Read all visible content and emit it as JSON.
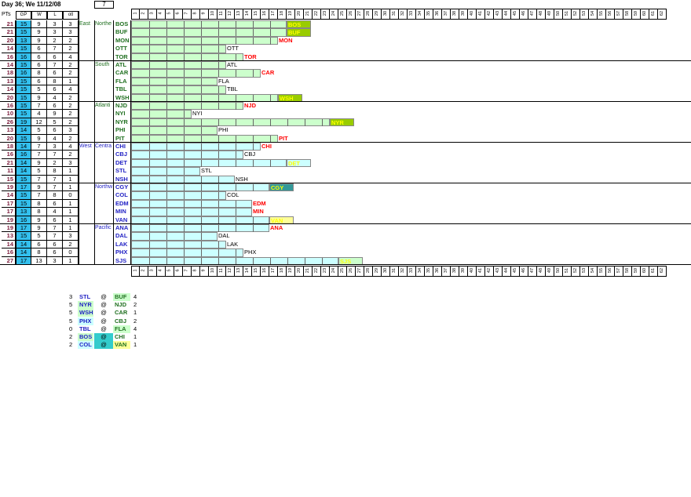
{
  "header": {
    "title": "Day 36; We 11/12/08",
    "box": "7"
  },
  "columns": {
    "pts": "PTs",
    "gp": "GP",
    "w": "W",
    "l": "L",
    "otl": "otl"
  },
  "axis": [
    "1",
    "2",
    "3",
    "4",
    "5",
    "6",
    "7",
    "8",
    "9",
    "10",
    "11",
    "12",
    "13",
    "14",
    "15",
    "16",
    "17",
    "18",
    "19",
    "20",
    "21",
    "22",
    "23",
    "24",
    "25",
    "26",
    "27",
    "28",
    "29",
    "30",
    "31",
    "32",
    "33",
    "34",
    "35",
    "36",
    "37",
    "38",
    "39",
    "40",
    "41",
    "42",
    "43",
    "44",
    "45",
    "46",
    "47",
    "48",
    "49",
    "50",
    "51",
    "52",
    "53",
    "54",
    "55",
    "56",
    "57",
    "58",
    "59",
    "60",
    "61",
    "62"
  ],
  "divisions": [
    {
      "conf": "East",
      "name": "Northe",
      "teams": [
        {
          "pts": "21",
          "gp": "15",
          "w": "9",
          "l": "3",
          "otl": "3",
          "team": "BOS",
          "bar": 21,
          "label": "BOS",
          "color": "#99cc00",
          "labelColor": "#ffff00"
        },
        {
          "pts": "21",
          "gp": "15",
          "w": "9",
          "l": "3",
          "otl": "3",
          "team": "BUF",
          "bar": 21,
          "label": "BUF",
          "color": "#99cc00",
          "labelColor": "#ffff00"
        },
        {
          "pts": "20",
          "gp": "13",
          "w": "9",
          "l": "2",
          "otl": "2",
          "team": "MON",
          "bar": 20,
          "label": "MON",
          "color": "#ffffff",
          "labelColor": "#ff0000"
        },
        {
          "pts": "14",
          "gp": "15",
          "w": "6",
          "l": "7",
          "otl": "2",
          "team": "OTT",
          "bar": 14,
          "label": "OTT",
          "color": "#ffffff",
          "labelColor": "#000000"
        },
        {
          "pts": "16",
          "gp": "16",
          "w": "6",
          "l": "6",
          "otl": "4",
          "team": "TOR",
          "bar": 16,
          "label": "TOR",
          "color": "#ffffff",
          "labelColor": "#ff0000"
        }
      ]
    },
    {
      "conf": "",
      "name": "South",
      "teams": [
        {
          "pts": "14",
          "gp": "15",
          "w": "6",
          "l": "7",
          "otl": "2",
          "team": "ATL",
          "bar": 14,
          "label": "ATL",
          "color": "#ffffff",
          "labelColor": "#000000"
        },
        {
          "pts": "18",
          "gp": "16",
          "w": "8",
          "l": "6",
          "otl": "2",
          "team": "CAR",
          "bar": 18,
          "label": "CAR",
          "color": "#ffffff",
          "labelColor": "#ff0000"
        },
        {
          "pts": "13",
          "gp": "15",
          "w": "6",
          "l": "8",
          "otl": "1",
          "team": "FLA",
          "bar": 13,
          "label": "FLA",
          "color": "#ffffff",
          "labelColor": "#000000"
        },
        {
          "pts": "14",
          "gp": "15",
          "w": "5",
          "l": "6",
          "otl": "4",
          "team": "TBL",
          "bar": 14,
          "label": "TBL",
          "color": "#ffffff",
          "labelColor": "#000000"
        },
        {
          "pts": "20",
          "gp": "15",
          "w": "9",
          "l": "4",
          "otl": "2",
          "team": "WSH",
          "bar": 20,
          "label": "WSH",
          "color": "#99cc00",
          "labelColor": "#ffff00"
        }
      ]
    },
    {
      "conf": "",
      "name": "Atlanti",
      "teams": [
        {
          "pts": "16",
          "gp": "15",
          "w": "7",
          "l": "6",
          "otl": "2",
          "team": "NJD",
          "bar": 16,
          "label": "NJD",
          "color": "#ffffff",
          "labelColor": "#ff0000"
        },
        {
          "pts": "10",
          "gp": "15",
          "w": "4",
          "l": "9",
          "otl": "2",
          "team": "NYI",
          "bar": 10,
          "label": "NYI",
          "color": "#ffffff",
          "labelColor": "#000000"
        },
        {
          "pts": "26",
          "gp": "19",
          "w": "12",
          "l": "5",
          "otl": "2",
          "team": "NYR",
          "bar": 26,
          "label": "NYR",
          "color": "#99cc00",
          "labelColor": "#ffff00"
        },
        {
          "pts": "13",
          "gp": "14",
          "w": "5",
          "l": "6",
          "otl": "3",
          "team": "PHI",
          "bar": 13,
          "label": "PHI",
          "color": "#ffffff",
          "labelColor": "#000000"
        },
        {
          "pts": "20",
          "gp": "15",
          "w": "9",
          "l": "4",
          "otl": "2",
          "team": "PIT",
          "bar": 20,
          "label": "PIT",
          "color": "#ffffff",
          "labelColor": "#ff0000"
        }
      ]
    },
    {
      "conf": "West",
      "name": "Centra",
      "teams": [
        {
          "pts": "18",
          "gp": "14",
          "w": "7",
          "l": "3",
          "otl": "4",
          "team": "CHI",
          "bar": 18,
          "label": "CHI",
          "color": "#ffffff",
          "labelColor": "#ff0000"
        },
        {
          "pts": "16",
          "gp": "16",
          "w": "7",
          "l": "7",
          "otl": "2",
          "team": "CBJ",
          "bar": 16,
          "label": "CBJ",
          "color": "#ffffff",
          "labelColor": "#000000"
        },
        {
          "pts": "21",
          "gp": "14",
          "w": "9",
          "l": "2",
          "otl": "3",
          "team": "DET",
          "bar": 21,
          "label": "DET",
          "color": "#ccffff",
          "labelColor": "#ffff00"
        },
        {
          "pts": "11",
          "gp": "14",
          "w": "5",
          "l": "8",
          "otl": "1",
          "team": "STL",
          "bar": 11,
          "label": "STL",
          "color": "#ffffff",
          "labelColor": "#000000"
        },
        {
          "pts": "15",
          "gp": "15",
          "w": "7",
          "l": "7",
          "otl": "1",
          "team": "NSH",
          "bar": 15,
          "label": "NSH",
          "color": "#ffffff",
          "labelColor": "#000000"
        }
      ]
    },
    {
      "conf": "",
      "name": "Northw",
      "teams": [
        {
          "pts": "19",
          "gp": "17",
          "w": "9",
          "l": "7",
          "otl": "1",
          "team": "CGY",
          "bar": 19,
          "label": "CGY",
          "color": "#339999",
          "labelColor": "#ffff00"
        },
        {
          "pts": "14",
          "gp": "15",
          "w": "7",
          "l": "8",
          "otl": "0",
          "team": "COL",
          "bar": 14,
          "label": "COL",
          "color": "#ffffff",
          "labelColor": "#000000"
        },
        {
          "pts": "17",
          "gp": "15",
          "w": "8",
          "l": "6",
          "otl": "1",
          "team": "EDM",
          "bar": 17,
          "label": "EDM",
          "color": "#ffffff",
          "labelColor": "#ff0000"
        },
        {
          "pts": "17",
          "gp": "13",
          "w": "8",
          "l": "4",
          "otl": "1",
          "team": "MIN",
          "bar": 17,
          "label": "MIN",
          "color": "#ffffff",
          "labelColor": "#ff0000"
        },
        {
          "pts": "19",
          "gp": "16",
          "w": "9",
          "l": "6",
          "otl": "1",
          "team": "VAN",
          "bar": 19,
          "label": "VAN",
          "color": "#ffff99",
          "labelColor": "#ffff00"
        }
      ]
    },
    {
      "conf": "",
      "name": "Pacific",
      "teams": [
        {
          "pts": "19",
          "gp": "17",
          "w": "9",
          "l": "7",
          "otl": "1",
          "team": "ANA",
          "bar": 19,
          "label": "ANA",
          "color": "#ffffff",
          "labelColor": "#ff0000"
        },
        {
          "pts": "13",
          "gp": "15",
          "w": "5",
          "l": "7",
          "otl": "3",
          "team": "DAL",
          "bar": 13,
          "label": "DAL",
          "color": "#ffffff",
          "labelColor": "#000000"
        },
        {
          "pts": "14",
          "gp": "14",
          "w": "6",
          "l": "6",
          "otl": "2",
          "team": "LAK",
          "bar": 14,
          "label": "LAK",
          "color": "#ffffff",
          "labelColor": "#000000"
        },
        {
          "pts": "16",
          "gp": "14",
          "w": "8",
          "l": "6",
          "otl": "0",
          "team": "PHX",
          "bar": 16,
          "label": "PHX",
          "color": "#ffffff",
          "labelColor": "#000000"
        },
        {
          "pts": "27",
          "gp": "17",
          "w": "13",
          "l": "3",
          "otl": "1",
          "team": "SJS",
          "bar": 27,
          "label": "SJS",
          "color": "#ccffcc",
          "labelColor": "#ffff00"
        }
      ]
    }
  ],
  "colors": {
    "eastBar": "#ccffcc",
    "westBar": "#ccffff",
    "gp": "#33c0ee"
  },
  "games": [
    {
      "a": "3",
      "away": "STL",
      "at": "@",
      "home": "BUF",
      "b": "4",
      "awayBg": "#ffffff",
      "atBg": "#ffffff",
      "homeBg": "#ccffcc"
    },
    {
      "a": "5",
      "away": "NYR",
      "at": "@",
      "home": "NJD",
      "b": "2",
      "awayBg": "#ccffcc",
      "atBg": "#ffffff",
      "homeBg": "#ffffff"
    },
    {
      "a": "5",
      "away": "WSH",
      "at": "@",
      "home": "CAR",
      "b": "1",
      "awayBg": "#ccffcc",
      "atBg": "#ffffff",
      "homeBg": "#ffffff"
    },
    {
      "a": "5",
      "away": "PHX",
      "at": "@",
      "home": "CBJ",
      "b": "2",
      "awayBg": "#ccffff",
      "atBg": "#ffffff",
      "homeBg": "#ffffff"
    },
    {
      "a": "0",
      "away": "TBL",
      "at": "@",
      "home": "FLA",
      "b": "4",
      "awayBg": "#ffffff",
      "atBg": "#ffffff",
      "homeBg": "#ccffcc"
    },
    {
      "a": "2",
      "away": "BOS",
      "at": "@",
      "home": "CHI",
      "b": "1",
      "awayBg": "#ccffcc",
      "atBg": "#33cccc",
      "homeBg": "#ffffff"
    },
    {
      "a": "2",
      "away": "COL",
      "at": "@",
      "home": "VAN",
      "b": "1",
      "awayBg": "#ccffff",
      "atBg": "#33cccc",
      "homeBg": "#ffff99"
    }
  ]
}
